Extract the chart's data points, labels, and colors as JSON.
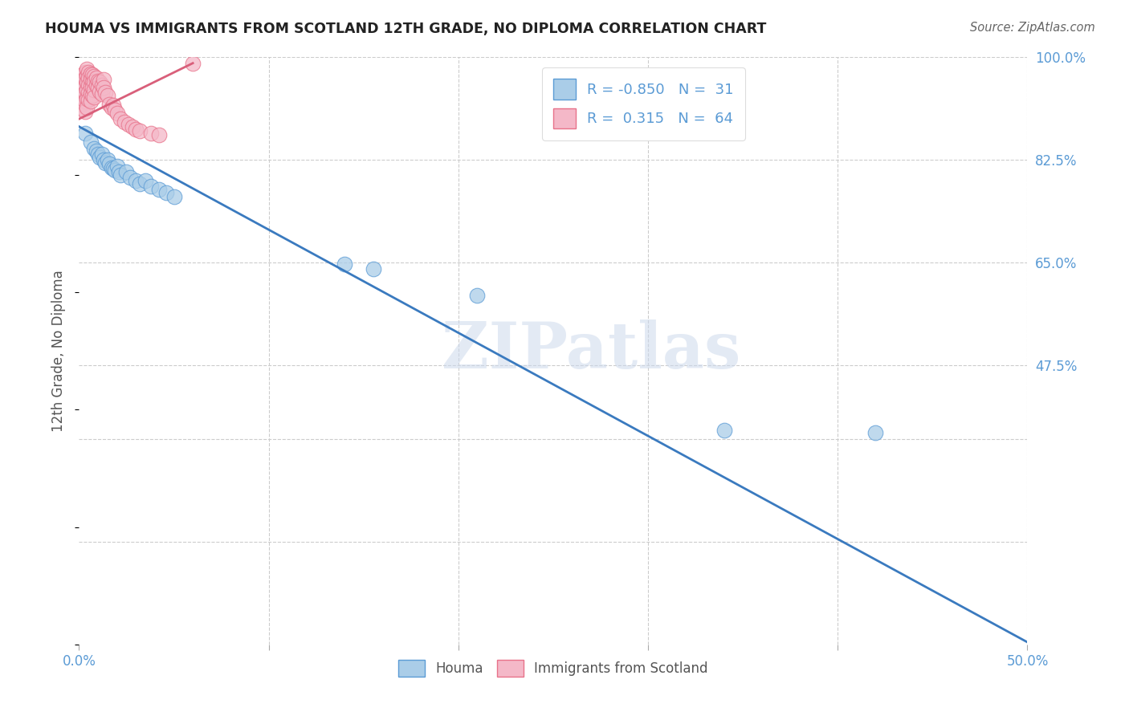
{
  "title": "HOUMA VS IMMIGRANTS FROM SCOTLAND 12TH GRADE, NO DIPLOMA CORRELATION CHART",
  "source": "Source: ZipAtlas.com",
  "ylabel": "12th Grade, No Diploma",
  "watermark": "ZIPatlas",
  "xlim": [
    0.0,
    0.5
  ],
  "ylim": [
    0.0,
    1.0
  ],
  "houma_color": "#aacde8",
  "scotland_color": "#f4b8c8",
  "houma_edge_color": "#5b9bd5",
  "scotland_edge_color": "#e8728a",
  "houma_line_color": "#3a7abf",
  "scotland_line_color": "#d95f7a",
  "R_houma": -0.85,
  "N_houma": 31,
  "R_scotland": 0.315,
  "N_scotland": 64,
  "houma_points_x": [
    0.003,
    0.006,
    0.008,
    0.009,
    0.01,
    0.011,
    0.012,
    0.013,
    0.014,
    0.015,
    0.016,
    0.017,
    0.018,
    0.019,
    0.02,
    0.021,
    0.022,
    0.025,
    0.027,
    0.03,
    0.032,
    0.035,
    0.038,
    0.042,
    0.046,
    0.05,
    0.14,
    0.155,
    0.21,
    0.34,
    0.42
  ],
  "houma_points_y": [
    0.87,
    0.855,
    0.845,
    0.84,
    0.835,
    0.83,
    0.835,
    0.825,
    0.82,
    0.825,
    0.818,
    0.812,
    0.81,
    0.808,
    0.815,
    0.805,
    0.8,
    0.805,
    0.795,
    0.79,
    0.785,
    0.79,
    0.78,
    0.775,
    0.77,
    0.762,
    0.648,
    0.64,
    0.595,
    0.365,
    0.36
  ],
  "scotland_points_x": [
    0.001,
    0.001,
    0.001,
    0.002,
    0.002,
    0.002,
    0.002,
    0.002,
    0.003,
    0.003,
    0.003,
    0.003,
    0.003,
    0.003,
    0.004,
    0.004,
    0.004,
    0.004,
    0.004,
    0.004,
    0.005,
    0.005,
    0.005,
    0.005,
    0.005,
    0.006,
    0.006,
    0.006,
    0.006,
    0.006,
    0.007,
    0.007,
    0.007,
    0.007,
    0.008,
    0.008,
    0.008,
    0.008,
    0.009,
    0.009,
    0.01,
    0.01,
    0.011,
    0.011,
    0.012,
    0.012,
    0.013,
    0.013,
    0.014,
    0.015,
    0.016,
    0.017,
    0.018,
    0.019,
    0.02,
    0.022,
    0.024,
    0.026,
    0.028,
    0.03,
    0.032,
    0.038,
    0.042,
    0.06
  ],
  "scotland_points_y": [
    0.96,
    0.94,
    0.92,
    0.97,
    0.955,
    0.945,
    0.93,
    0.912,
    0.975,
    0.965,
    0.95,
    0.94,
    0.925,
    0.908,
    0.98,
    0.968,
    0.958,
    0.945,
    0.93,
    0.915,
    0.975,
    0.965,
    0.952,
    0.94,
    0.928,
    0.972,
    0.962,
    0.95,
    0.938,
    0.925,
    0.97,
    0.958,
    0.948,
    0.935,
    0.968,
    0.958,
    0.945,
    0.932,
    0.965,
    0.952,
    0.96,
    0.948,
    0.958,
    0.942,
    0.952,
    0.938,
    0.962,
    0.948,
    0.94,
    0.935,
    0.92,
    0.915,
    0.918,
    0.91,
    0.905,
    0.895,
    0.89,
    0.885,
    0.882,
    0.878,
    0.875,
    0.87,
    0.868,
    0.99
  ],
  "houma_line_x": [
    0.0,
    0.505
  ],
  "houma_line_y": [
    0.882,
    -0.005
  ],
  "scotland_line_x": [
    0.0,
    0.06
  ],
  "scotland_line_y": [
    0.895,
    0.99
  ],
  "grid_color": "#cccccc",
  "bg_color": "#ffffff",
  "title_color": "#222222",
  "tick_color": "#5b9bd5",
  "label_color": "#555555"
}
